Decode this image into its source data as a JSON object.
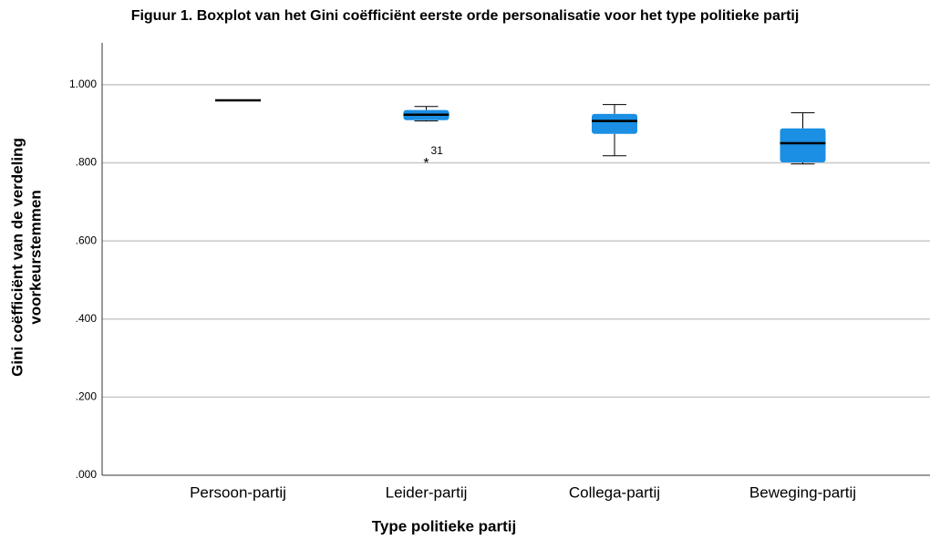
{
  "chart_data": {
    "type": "boxplot",
    "title": "Figuur 1. Boxplot van het Gini coëfficiënt eerste orde personalisatie voor het type politieke partij",
    "x_label": "Type politieke partij",
    "y_label": [
      "Gini coëfficiënt van de verdeling",
      "voorkeurstemmen"
    ],
    "categories": [
      "Persoon-partij",
      "Leider-partij",
      "Collega-partij",
      "Beweging-partij"
    ],
    "whisker_low": [
      0.96,
      0.907,
      0.818,
      0.797
    ],
    "q1": [
      0.96,
      0.909,
      0.874,
      0.801
    ],
    "median": [
      0.96,
      0.923,
      0.907,
      0.85
    ],
    "q3": [
      0.96,
      0.935,
      0.925,
      0.888
    ],
    "whisker_high": [
      0.96,
      0.944,
      0.949,
      0.928
    ],
    "outliers": [
      [],
      [
        {
          "value": 0.801,
          "label": "31"
        }
      ],
      [],
      []
    ],
    "color": "#1a8fe3",
    "ylim": [
      0,
      1.107
    ],
    "yticks": [
      {
        "value": 0,
        "label": ".000"
      },
      {
        "value": 0.2,
        "label": ".200"
      },
      {
        "value": 0.4,
        "label": ".400"
      },
      {
        "value": 0.6,
        "label": ".600"
      },
      {
        "value": 0.8,
        "label": ".800"
      },
      {
        "value": 1.0,
        "label": "1.000"
      }
    ],
    "grid": true
  }
}
